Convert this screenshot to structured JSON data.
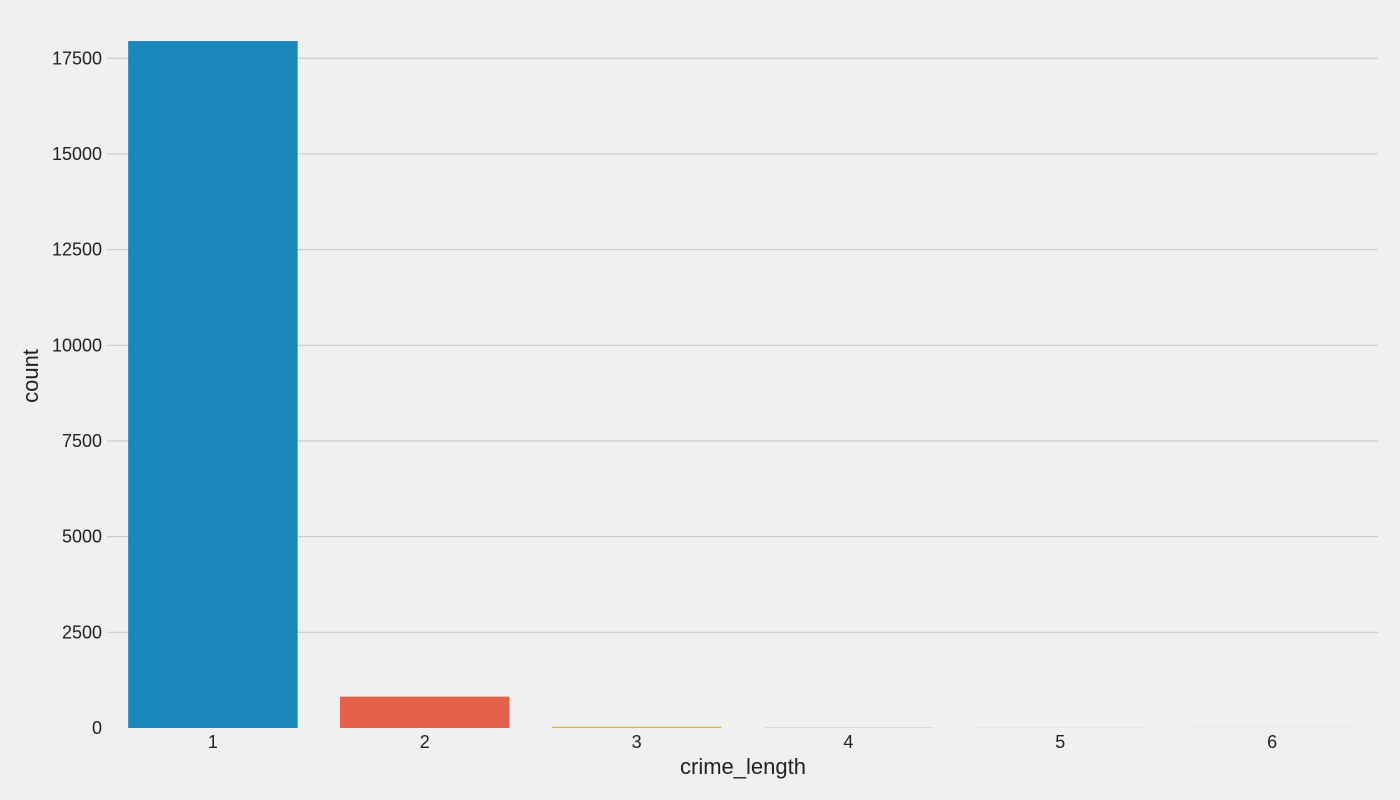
{
  "chart_data": {
    "type": "bar",
    "title": "",
    "xlabel": "crime_length",
    "ylabel": "count",
    "categories": [
      "1",
      "2",
      "3",
      "4",
      "5",
      "6"
    ],
    "values": [
      17950,
      820,
      35,
      5,
      2,
      1
    ],
    "ylim": [
      0,
      18500
    ],
    "yticks": [
      0,
      2500,
      5000,
      7500,
      10000,
      12500,
      15000,
      17500
    ],
    "ytick_labels": [
      "0",
      "2500",
      "5000",
      "7500",
      "10000",
      "12500",
      "15000",
      "17500"
    ],
    "grid": "horizontal",
    "colors": [
      "#1a87bc",
      "#e5604a",
      "#e2b13c",
      "#6d904f",
      "#8b8b8b",
      "#810f7c"
    ]
  }
}
